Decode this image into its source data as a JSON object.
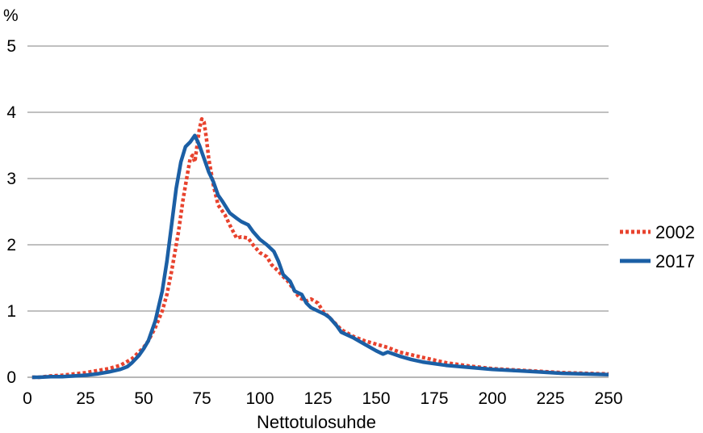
{
  "chart_data": {
    "type": "line",
    "title": "",
    "xlabel": "Nettotulosuhde",
    "ylabel": "%",
    "xlim": [
      0,
      250
    ],
    "ylim": [
      0,
      5
    ],
    "xticks": [
      0,
      25,
      50,
      75,
      100,
      125,
      150,
      175,
      200,
      225,
      250
    ],
    "yticks": [
      0,
      1,
      2,
      3,
      4,
      5
    ],
    "grid": "horizontal",
    "legend": "right",
    "series": [
      {
        "name": "2002",
        "color": "#e8432e",
        "style": "dotted",
        "x": [
          2,
          5,
          10,
          15,
          20,
          25,
          30,
          35,
          40,
          42,
          45,
          48,
          50,
          52,
          55,
          58,
          60,
          62,
          65,
          67,
          69,
          70,
          71,
          72,
          73,
          74,
          75,
          76,
          77,
          78,
          80,
          82,
          85,
          87,
          90,
          92,
          95,
          97,
          100,
          103,
          105,
          108,
          110,
          112,
          115,
          117,
          120,
          122,
          125,
          127,
          130,
          135,
          140,
          145,
          150,
          155,
          160,
          170,
          180,
          190,
          200,
          210,
          220,
          230,
          240,
          250
        ],
        "y": [
          0.0,
          0.0,
          0.02,
          0.03,
          0.05,
          0.07,
          0.1,
          0.13,
          0.18,
          0.22,
          0.28,
          0.38,
          0.45,
          0.55,
          0.75,
          1.0,
          1.25,
          1.6,
          2.2,
          2.7,
          3.1,
          3.3,
          3.35,
          3.25,
          3.5,
          3.75,
          3.9,
          3.85,
          3.6,
          3.3,
          2.9,
          2.6,
          2.45,
          2.3,
          2.1,
          2.12,
          2.1,
          2.0,
          1.88,
          1.82,
          1.7,
          1.6,
          1.52,
          1.45,
          1.3,
          1.2,
          1.15,
          1.18,
          1.12,
          1.0,
          0.9,
          0.72,
          0.62,
          0.55,
          0.5,
          0.45,
          0.38,
          0.3,
          0.22,
          0.17,
          0.13,
          0.11,
          0.09,
          0.07,
          0.06,
          0.05
        ]
      },
      {
        "name": "2017",
        "color": "#1b5fa5",
        "style": "solid",
        "x": [
          2,
          5,
          10,
          15,
          20,
          25,
          30,
          35,
          40,
          43,
          45,
          48,
          50,
          52,
          55,
          58,
          60,
          62,
          64,
          66,
          68,
          70,
          72,
          74,
          76,
          78,
          80,
          82,
          84,
          87,
          90,
          92,
          95,
          97,
          100,
          103,
          106,
          108,
          110,
          113,
          115,
          118,
          120,
          122,
          125,
          128,
          130,
          133,
          135,
          140,
          145,
          150,
          153,
          155,
          160,
          165,
          170,
          180,
          190,
          200,
          210,
          220,
          230,
          240,
          250
        ],
        "y": [
          0.0,
          0.0,
          0.01,
          0.01,
          0.02,
          0.03,
          0.05,
          0.08,
          0.12,
          0.16,
          0.22,
          0.33,
          0.43,
          0.55,
          0.85,
          1.3,
          1.75,
          2.3,
          2.85,
          3.25,
          3.48,
          3.55,
          3.65,
          3.5,
          3.3,
          3.1,
          2.95,
          2.75,
          2.65,
          2.48,
          2.4,
          2.35,
          2.3,
          2.2,
          2.08,
          2.0,
          1.9,
          1.75,
          1.55,
          1.45,
          1.3,
          1.25,
          1.12,
          1.05,
          1.0,
          0.95,
          0.9,
          0.78,
          0.68,
          0.6,
          0.5,
          0.4,
          0.35,
          0.38,
          0.32,
          0.27,
          0.23,
          0.18,
          0.15,
          0.12,
          0.1,
          0.08,
          0.06,
          0.05,
          0.04
        ]
      }
    ]
  }
}
